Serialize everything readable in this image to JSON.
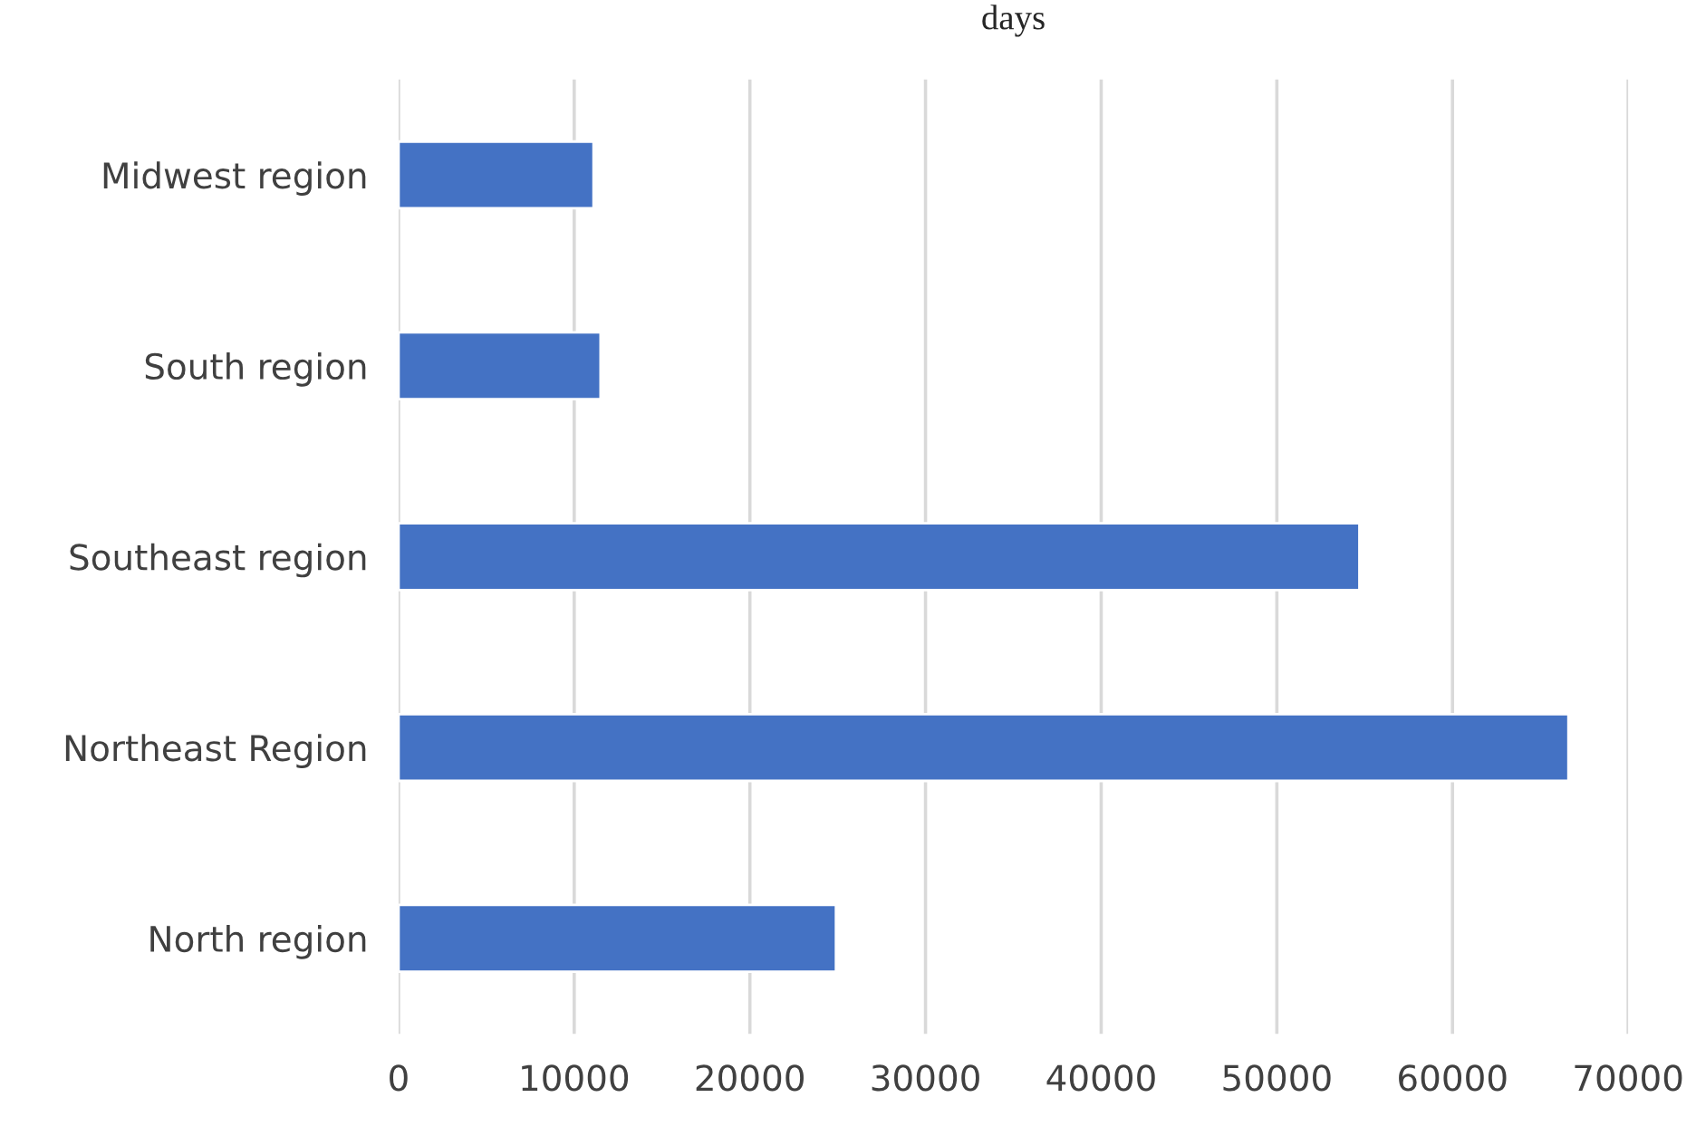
{
  "chart_data": {
    "type": "bar",
    "orientation": "horizontal",
    "title": "days",
    "categories": [
      "Midwest region",
      "South region",
      "Southeast region",
      "Northeast Region",
      "North region"
    ],
    "series": [
      {
        "color": "#4472c4",
        "values": [
          11100,
          11500,
          54700,
          66600,
          24900
        ]
      }
    ],
    "xlim": [
      0,
      70000
    ],
    "xticks": [
      0,
      10000,
      20000,
      30000,
      40000,
      50000,
      60000,
      70000
    ],
    "grid": "x",
    "legend": false
  }
}
